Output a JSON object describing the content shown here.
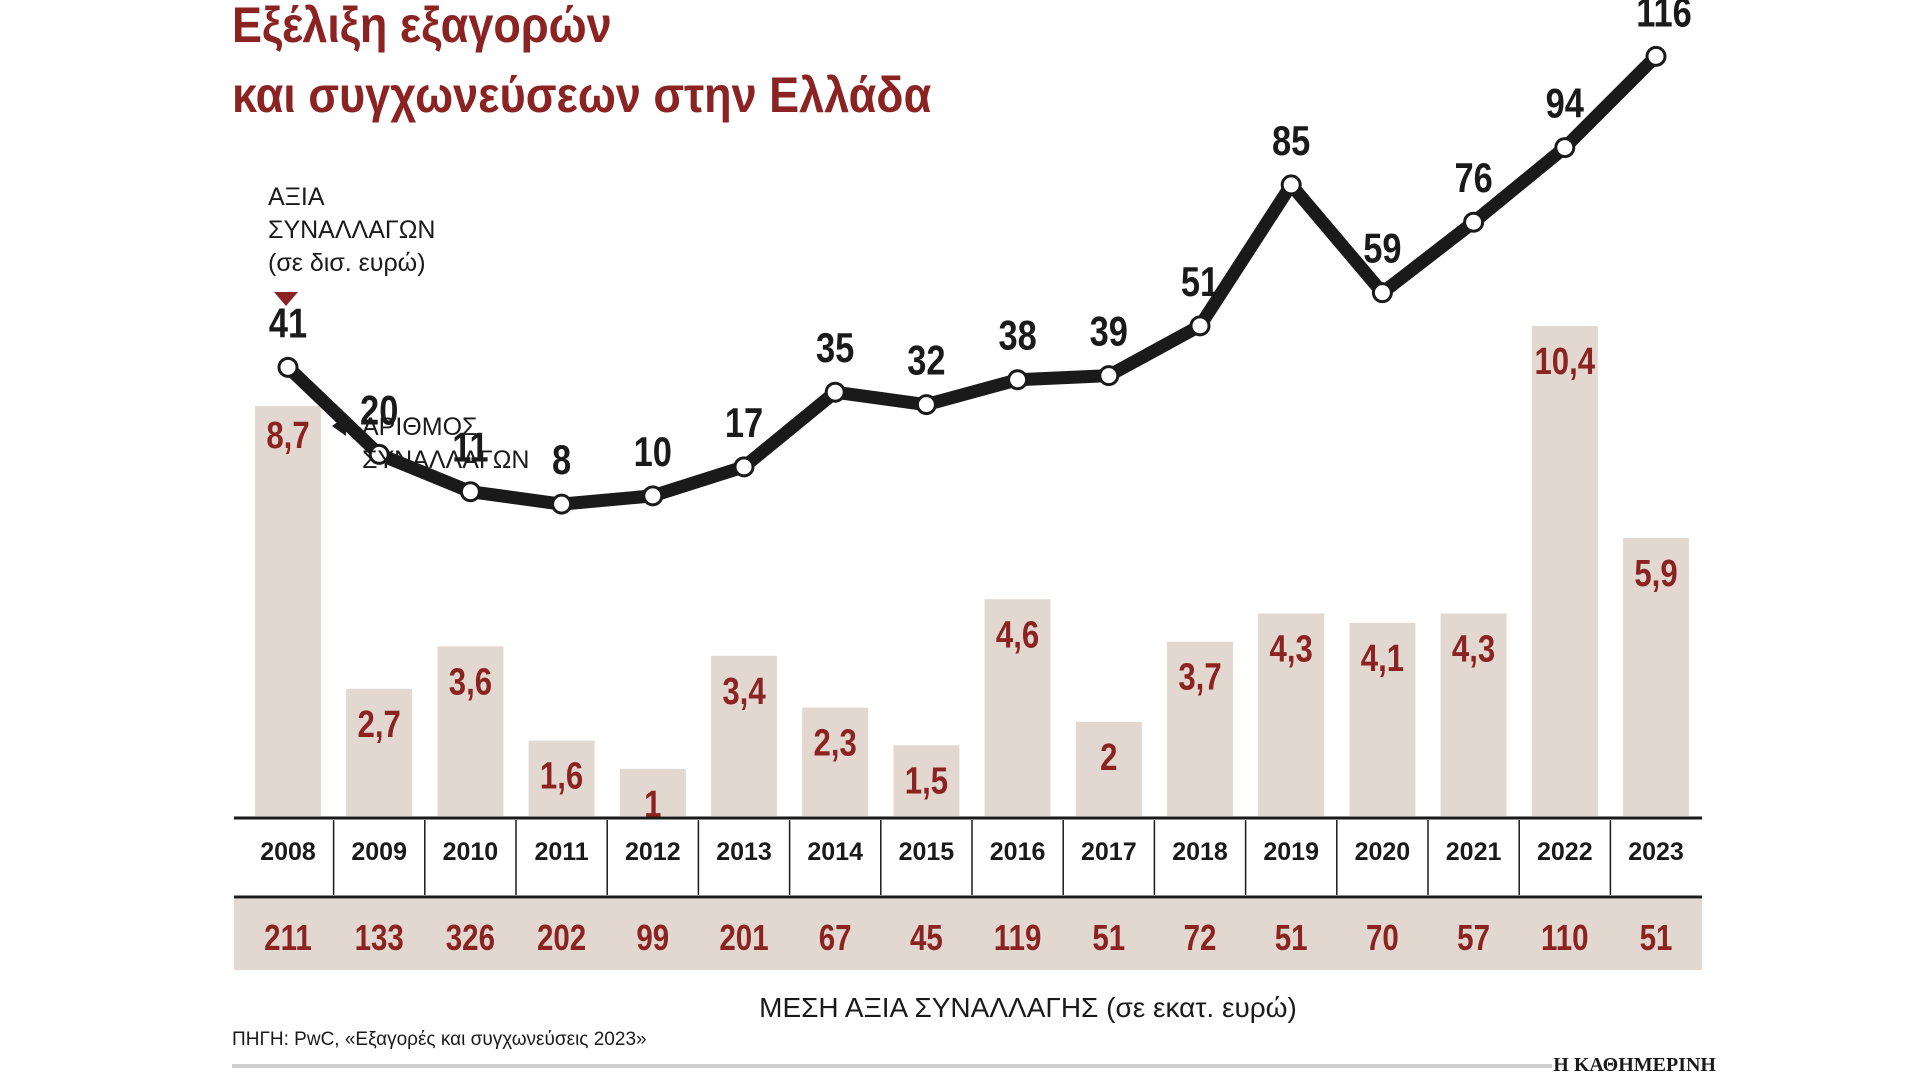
{
  "chart_data": {
    "type": "bar",
    "title_line1": "Εξέλιξη εξαγορών",
    "title_line2": "και συγχωνεύσεων στην Ελλάδα",
    "bar_legend": [
      "ΑΞΙΑ",
      "ΣΥΝΑΛΛΑΓΩΝ",
      "(σε δισ. ευρώ)"
    ],
    "line_legend": [
      "ΑΡΙΘΜΟΣ",
      "ΣΥΝΑΛΛΑΓΩΝ"
    ],
    "categories": [
      "2008",
      "2009",
      "2010",
      "2011",
      "2012",
      "2013",
      "2014",
      "2015",
      "2016",
      "2017",
      "2018",
      "2019",
      "2020",
      "2021",
      "2022",
      "2023"
    ],
    "series": [
      {
        "name": "ΑΞΙΑ ΣΥΝΑΛΛΑΓΩΝ (σε δισ. ευρώ)",
        "type": "bar",
        "values": [
          8.7,
          2.7,
          3.6,
          1.6,
          1,
          3.4,
          2.3,
          1.5,
          4.6,
          2,
          3.7,
          4.3,
          4.1,
          4.3,
          10.4,
          5.9
        ],
        "labels": [
          "8,7",
          "2,7",
          "3,6",
          "1,6",
          "1",
          "3,4",
          "2,3",
          "1,5",
          "4,6",
          "2",
          "3,7",
          "4,3",
          "4,1",
          "4,3",
          "10,4",
          "5,9"
        ]
      },
      {
        "name": "ΑΡΙΘΜΟΣ ΣΥΝΑΛΛΑΓΩΝ",
        "type": "line",
        "values": [
          41,
          20,
          11,
          8,
          10,
          17,
          35,
          32,
          38,
          39,
          51,
          85,
          59,
          76,
          94,
          116
        ]
      }
    ],
    "avg_values": [
      "211",
      "133",
      "326",
      "202",
      "99",
      "201",
      "67",
      "45",
      "119",
      "51",
      "72",
      "51",
      "70",
      "57",
      "110",
      "51"
    ],
    "avg_label": "ΜΕΣΗ ΑΞΙΑ ΣΥΝΑΛΛΑΓΗΣ (σε εκατ. ευρώ)",
    "bar_ylim": [
      0,
      12
    ],
    "line_ylim": [
      0,
      125
    ],
    "grid": false
  },
  "source": "ΠΗΓΗ: PwC, «Εξαγορές και συγχωνεύσεις 2023»",
  "brand": "Η ΚΑΘΗΜΕΡΙΝΗ",
  "colors": {
    "title": "#8b2323",
    "bar": "#e2d8cf",
    "bar_label": "#8b2323",
    "line": "#1a1a1a",
    "avg_band": "#e2d8cf",
    "avg_text": "#8b2323"
  }
}
